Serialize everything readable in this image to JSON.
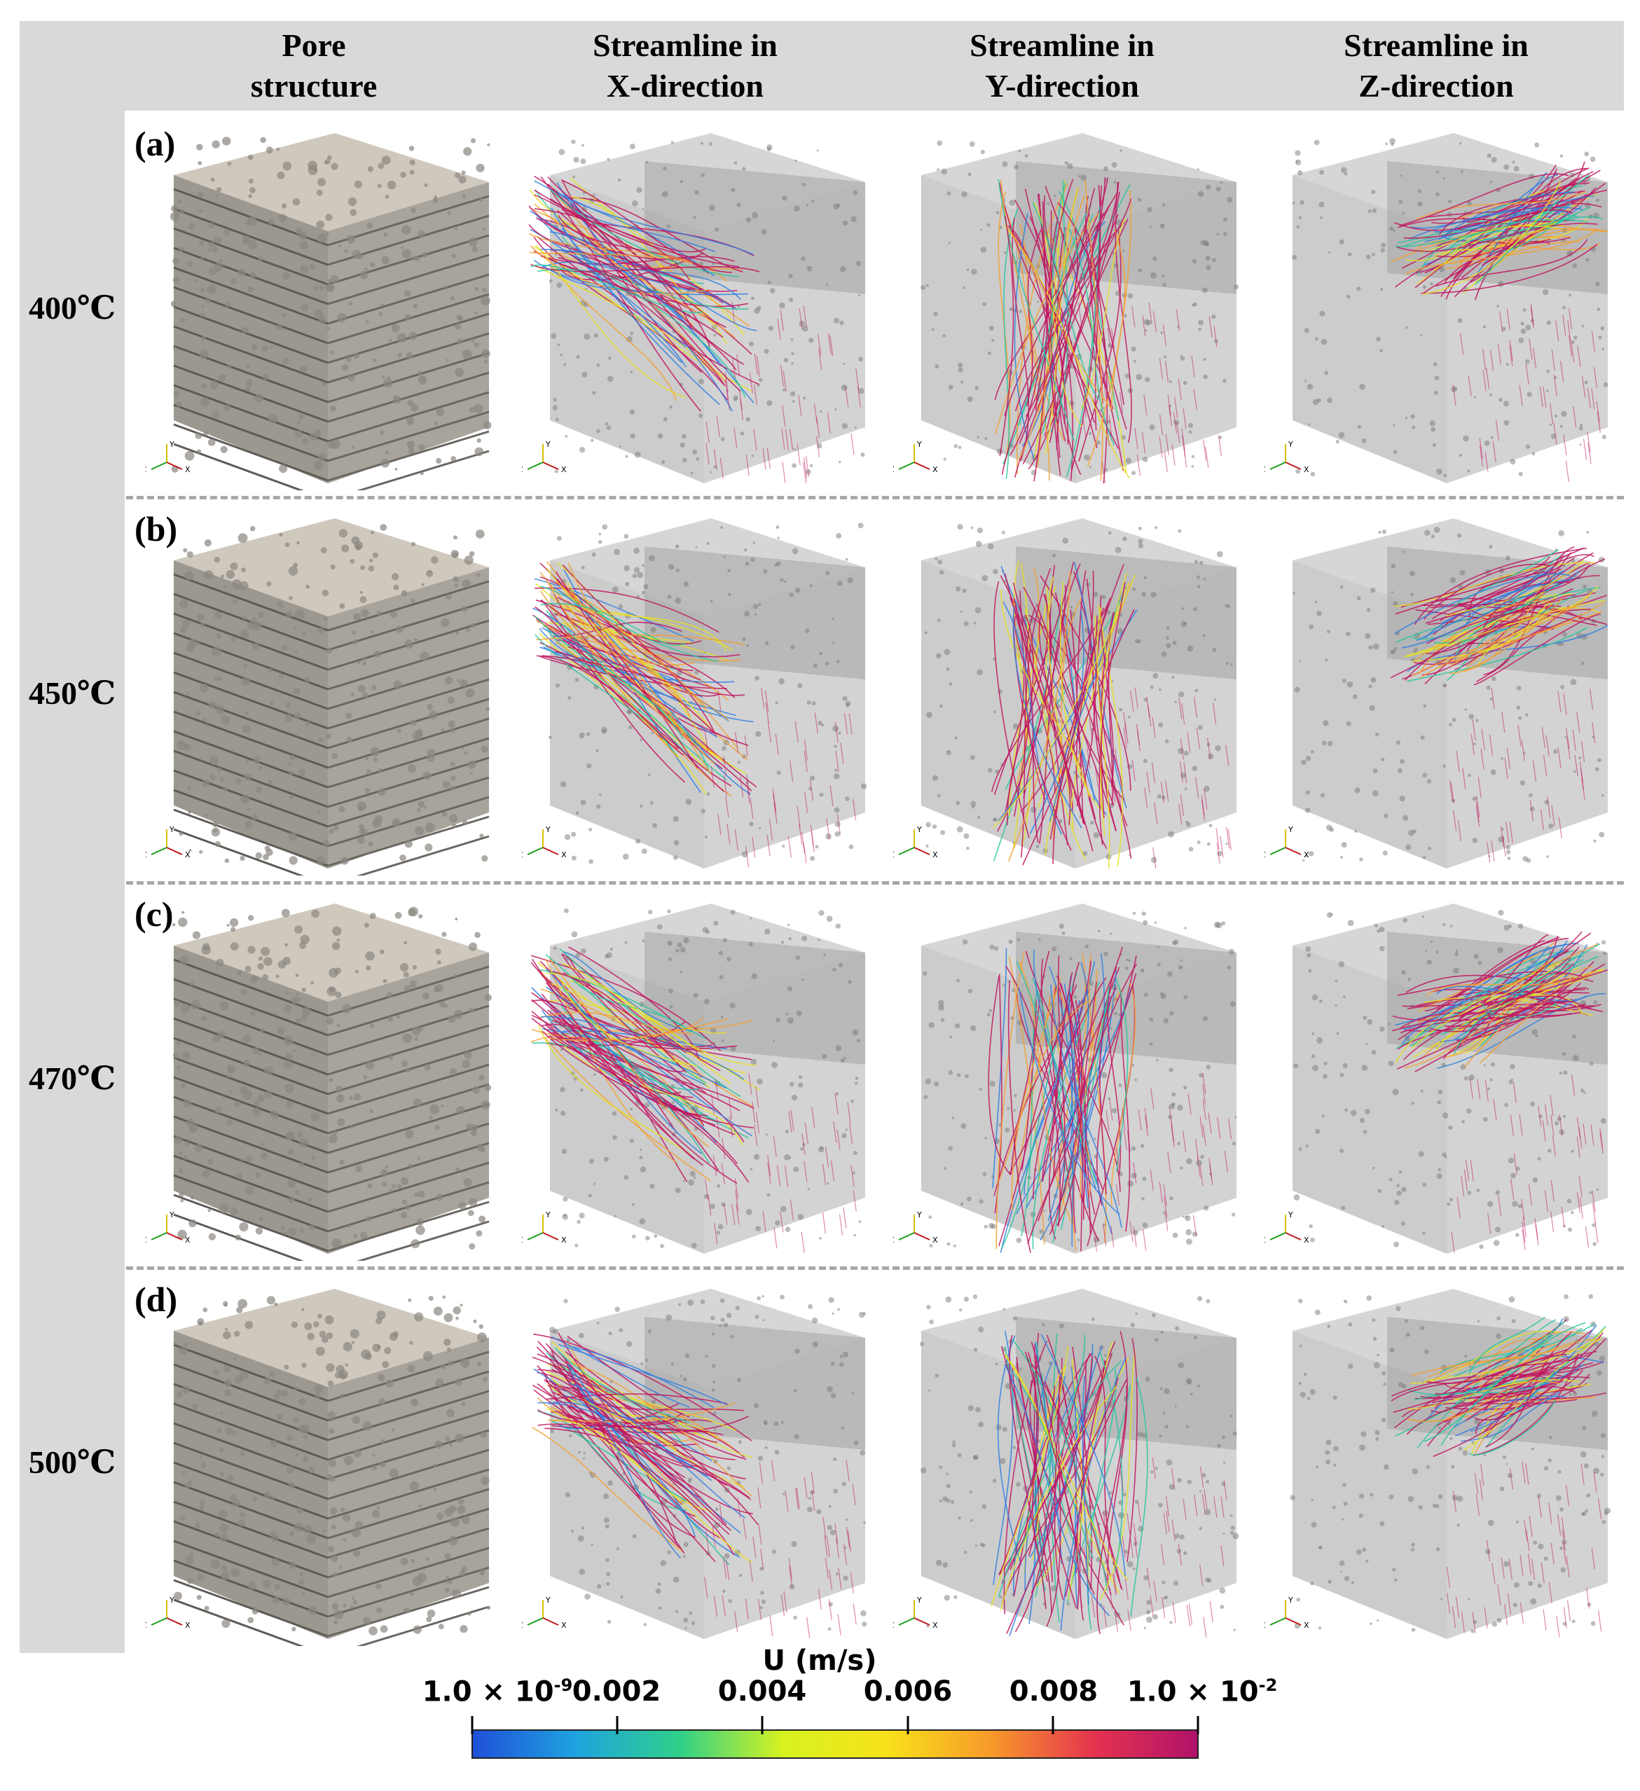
{
  "columns": [
    "Pore\nstructure",
    "Streamline in\nX-direction",
    "Streamline in\nY-direction",
    "Streamline in\nZ-direction"
  ],
  "rows": [
    {
      "letter": "(a)",
      "temp": "400℃"
    },
    {
      "letter": "(b)",
      "temp": "450℃"
    },
    {
      "letter": "(c)",
      "temp": "470℃"
    },
    {
      "letter": "(d)",
      "temp": "500℃"
    }
  ],
  "axes_labels": {
    "x": "X",
    "y": "Y",
    "z": "Z"
  },
  "colorbar": {
    "title": "U (m/s)",
    "min_label": "1.0 × 10",
    "min_exp": "-9",
    "max_label": "1.0 × 10",
    "max_exp": "-2",
    "ticks": [
      "0.002",
      "0.004",
      "0.006",
      "0.008"
    ],
    "colors": [
      "#1f4fd8",
      "#1fa3e0",
      "#2fd08a",
      "#d7f21f",
      "#f7e21a",
      "#f79a2a",
      "#e5334f",
      "#b0126a"
    ]
  },
  "colors": {
    "band": "#d9d9d9",
    "divider": "#a8a8a8",
    "pore_top": "#cfc8bd",
    "pore_side": "#8a8680",
    "stream_box": "#9a9a9a"
  }
}
